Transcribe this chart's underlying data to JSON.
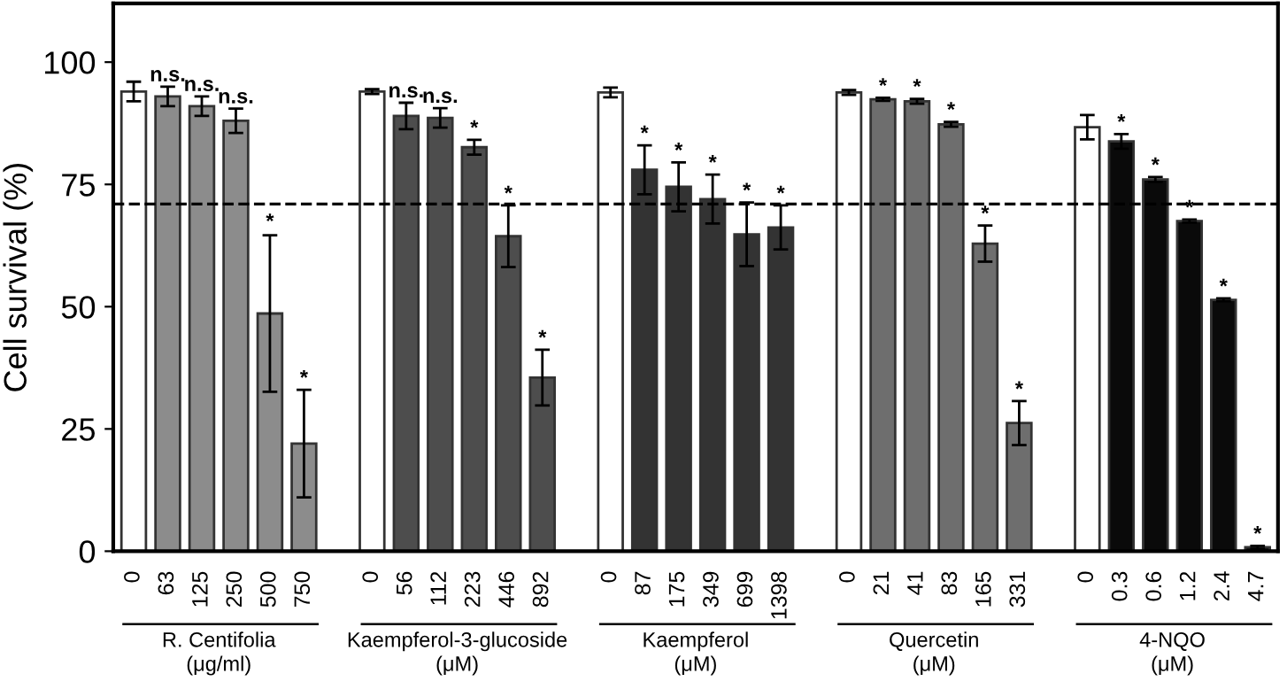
{
  "chart_data": {
    "type": "bar",
    "ylabel": "Cell survival (%)",
    "categories": [
      "0",
      "63",
      "125",
      "250",
      "500",
      "750",
      null,
      "0",
      "56",
      "112",
      "223",
      "446",
      "892",
      null,
      "0",
      "87",
      "175",
      "349",
      "699",
      "1398",
      null,
      "0",
      "21",
      "41",
      "83",
      "165",
      "331",
      null,
      "0",
      "0.3",
      "0.6",
      "1.2",
      "2.4",
      "4.7"
    ],
    "values": [
      94,
      93,
      91,
      88,
      48.6,
      22,
      null,
      94,
      89,
      88.6,
      82.6,
      64.4,
      35.5,
      null,
      93.8,
      78,
      74.5,
      72,
      64.8,
      66.2,
      null,
      93.8,
      92.4,
      92,
      87.3,
      62.9,
      26.2,
      null,
      86.7,
      83.8,
      76,
      67.5,
      51.4,
      0.8
    ],
    "errors": [
      2,
      2,
      2,
      2.5,
      16,
      11,
      null,
      0.5,
      2.7,
      2,
      1.5,
      6.3,
      5.7,
      null,
      1,
      5,
      5,
      5,
      6.5,
      4.5,
      null,
      0.5,
      0.3,
      0.5,
      0.5,
      3.7,
      4.5,
      null,
      2.5,
      1.5,
      0.5,
      0.3,
      0.3,
      0.3
    ],
    "colors": [
      "#ffffff",
      "#8c8c8c",
      "#8c8c8c",
      "#8c8c8c",
      "#8c8c8c",
      "#8c8c8c",
      null,
      "#ffffff",
      "#4d4d4d",
      "#4d4d4d",
      "#4d4d4d",
      "#4d4d4d",
      "#4d4d4d",
      null,
      "#ffffff",
      "#333333",
      "#333333",
      "#333333",
      "#333333",
      "#333333",
      null,
      "#ffffff",
      "#6e6e6e",
      "#6e6e6e",
      "#6e6e6e",
      "#6e6e6e",
      "#6e6e6e",
      null,
      "#ffffff",
      "#0a0a0a",
      "#0a0a0a",
      "#0a0a0a",
      "#0a0a0a",
      "#0a0a0a"
    ],
    "value_labels": [
      null,
      "n.s.",
      "n.s.",
      "n.s.",
      null,
      "*",
      null,
      null,
      "n.s.",
      "n.s.",
      "*",
      "*",
      "*",
      null,
      null,
      "*",
      "*",
      "*",
      "*",
      "*",
      null,
      null,
      "*",
      "*",
      "*",
      "*",
      "*",
      null,
      null,
      "*",
      "*",
      "*",
      "*",
      "*"
    ],
    "annotations": [
      "R. Centifolia\n(μg/ml)",
      "Kaempferol-3-glucoside\n(μM)",
      "Kaempferol\n(μM)",
      "Quercetin\n(μM)",
      "4-NQO\n(μM)",
      {
        "text": "*",
        "x": "500",
        "y": 65
      }
    ],
    "ref_lines": [
      {
        "axis": "y",
        "value": 71,
        "line_style": "dashed",
        "color": "#000000"
      }
    ],
    "ylim": [
      0,
      112
    ],
    "yticks": [
      0,
      25,
      50,
      75,
      100
    ],
    "grid": false
  }
}
